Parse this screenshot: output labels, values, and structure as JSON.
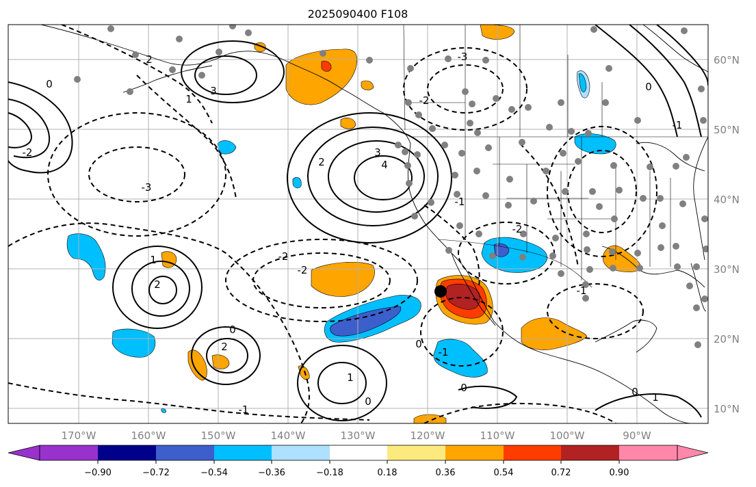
{
  "title": "2025090400 F108",
  "map": {
    "lat_labels": [
      "60°N",
      "50°N",
      "40°N",
      "30°N",
      "20°N",
      "10°N"
    ],
    "lon_labels": [
      "170°W",
      "160°W",
      "150°W",
      "140°W",
      "130°W",
      "120°W",
      "110°W",
      "100°W",
      "90°W"
    ],
    "contour_labels": [
      "0",
      "2",
      "3",
      "-3",
      "1",
      "-2",
      "2",
      "3",
      "4",
      "1",
      "2",
      "2",
      "-2",
      "-2",
      "0",
      "-1",
      "1",
      "0",
      "-1",
      "0",
      "-1",
      "0",
      "-3",
      "-2",
      "-2",
      "-1",
      "0",
      "0",
      "1",
      "-1"
    ],
    "colors": {
      "pos_light": "#fcea7f",
      "pos_orange": "#ffa500",
      "pos_red": "#ff3c00",
      "pos_darkred": "#b22222",
      "neg_lightblue": "#aee0ff",
      "neg_blue": "#00bfff",
      "neg_medblue": "#3c5fcc",
      "grid": "#b0b0b0",
      "station_dot": "#808080"
    }
  },
  "colorbar": {
    "ticks": [
      "−0.90",
      "−0.72",
      "−0.54",
      "−0.36",
      "−0.18",
      "0.18",
      "0.36",
      "0.54",
      "0.72",
      "0.90"
    ],
    "colors": [
      "#9932cc",
      "#00008b",
      "#3c5fcc",
      "#00bfff",
      "#aee0ff",
      "#ffffff",
      "#fcea7f",
      "#ffa500",
      "#ff3c00",
      "#b22222",
      "#ff88aa"
    ]
  }
}
